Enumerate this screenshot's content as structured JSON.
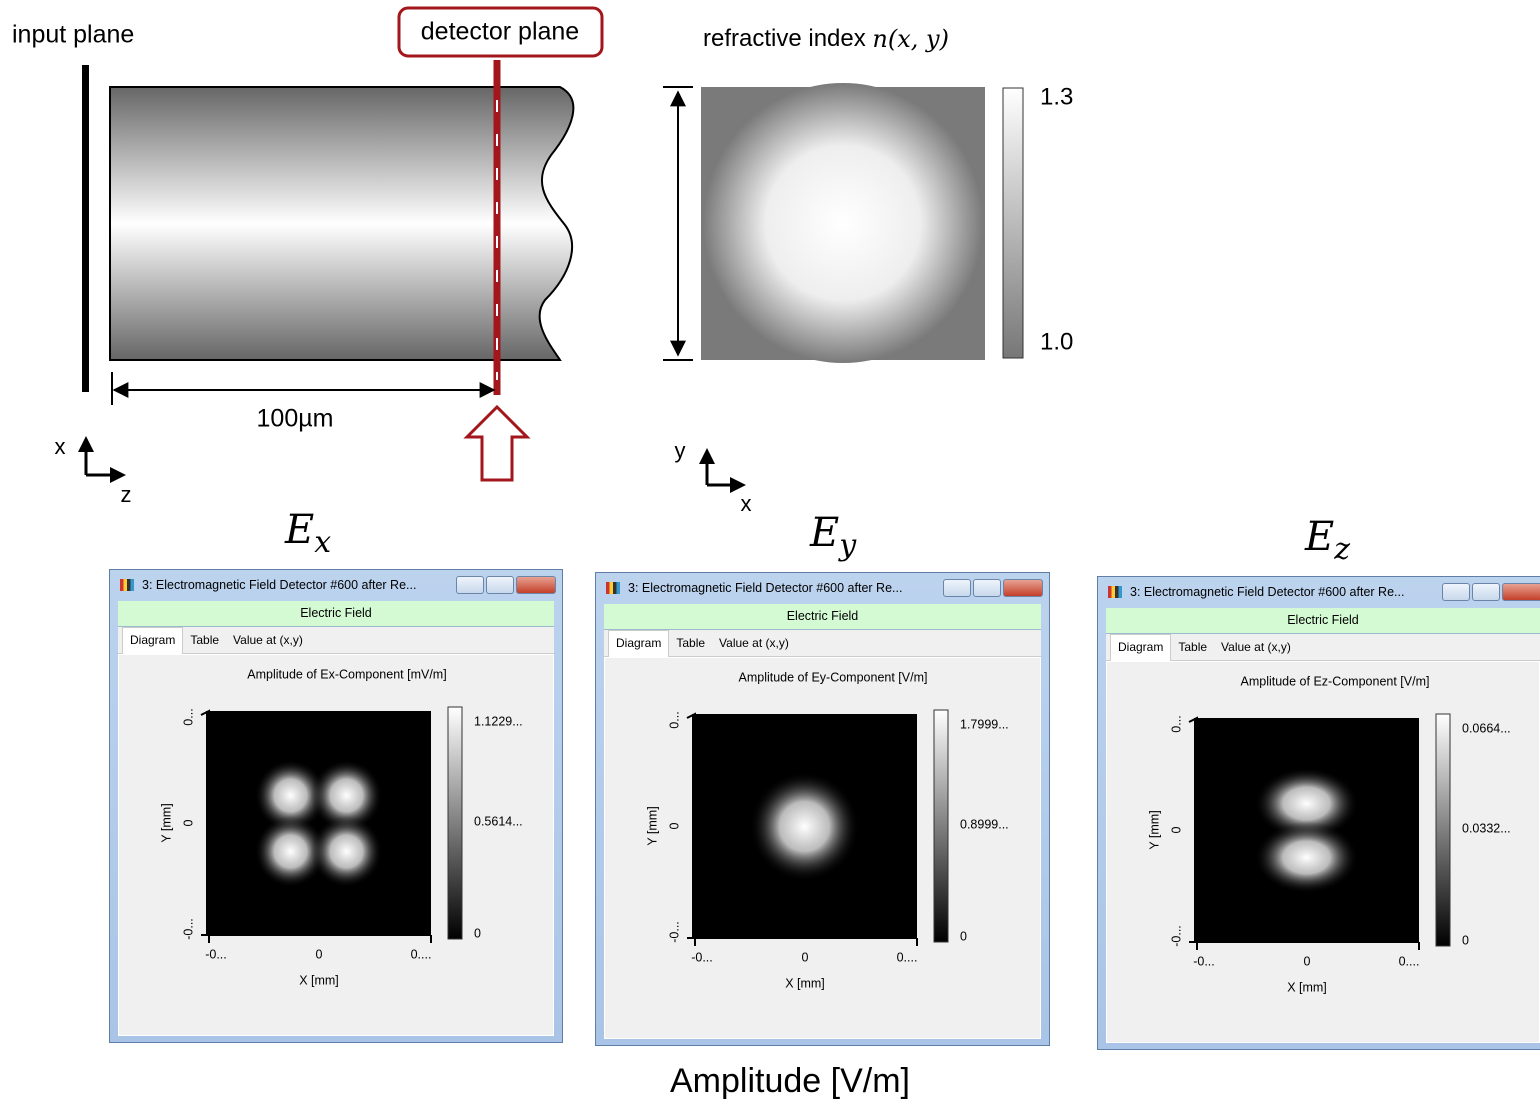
{
  "diagram": {
    "input_label": "input plane",
    "detector_label": "detector plane",
    "length_label": "100µm",
    "axes_left": {
      "vertical": "x",
      "horizontal": "z"
    },
    "refractive": {
      "title_text": "refractive index",
      "title_math": "n(x, y)",
      "max": "1.3",
      "min": "1.0"
    },
    "axes_right": {
      "vertical": "y",
      "horizontal": "x"
    }
  },
  "windows": [
    {
      "heading": "E",
      "subscript": "x",
      "title": "3: Electromagnetic Field Detector #600 after Re...",
      "banner": "Electric Field",
      "tabs": [
        "Diagram",
        "Table",
        "Value at (x,y)"
      ],
      "plot_title": "Amplitude of Ex-Component  [mV/m]",
      "y_label": "Y [mm]",
      "x_label": "X [mm]",
      "y_ticks": [
        "0...",
        "0",
        "-0..."
      ],
      "x_ticks": [
        "-0...",
        "0",
        "0...."
      ],
      "scale": [
        "1.1229...",
        "0.5614...",
        "0"
      ]
    },
    {
      "heading": "E",
      "subscript": "y",
      "title": "3: Electromagnetic Field Detector #600 after Re...",
      "banner": "Electric Field",
      "tabs": [
        "Diagram",
        "Table",
        "Value at (x,y)"
      ],
      "plot_title": "Amplitude of Ey-Component  [V/m]",
      "y_label": "Y [mm]",
      "x_label": "X [mm]",
      "y_ticks": [
        "0...",
        "0",
        "-0..."
      ],
      "x_ticks": [
        "-0...",
        "0",
        "0...."
      ],
      "scale": [
        "1.7999...",
        "0.8999...",
        "0"
      ]
    },
    {
      "heading": "E",
      "subscript": "z",
      "title": "3: Electromagnetic Field Detector #600 after Re...",
      "banner": "Electric Field",
      "tabs": [
        "Diagram",
        "Table",
        "Value at (x,y)"
      ],
      "plot_title": "Amplitude of Ez-Component  [V/m]",
      "y_label": "Y [mm]",
      "x_label": "X [mm]",
      "y_ticks": [
        "0...",
        "0",
        "-0..."
      ],
      "x_ticks": [
        "-0...",
        "0",
        "0...."
      ],
      "scale": [
        "0.0664...",
        "0.0332...",
        "0"
      ]
    }
  ],
  "footer": "Amplitude [V/m]"
}
